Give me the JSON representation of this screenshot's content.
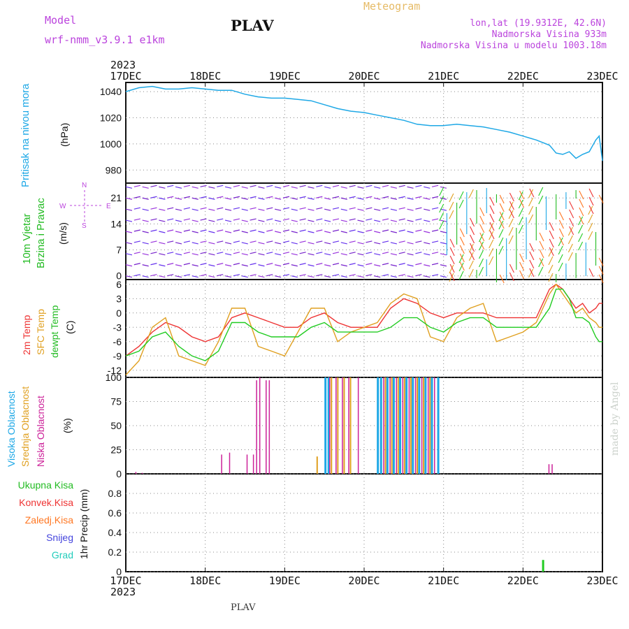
{
  "header": {
    "model_label": "Model",
    "model_name": "wrf-nmm_v3.9.1 e1km",
    "title": "PLAV",
    "meteogram_label": "Meteogram",
    "lonlat": "lon,lat (19.9312E, 42.6N)",
    "elevation": "Nadmorska Visina 933m",
    "model_elevation": "Nadmorska Visina u modelu 1003.18m",
    "year_top": "2023",
    "year_bottom": "2023",
    "footer_title": "PLAV",
    "watermark": "made by Angel"
  },
  "colors": {
    "pressure": "#1ea8e6",
    "wind_label": "#22bb22",
    "temp": "#ee3333",
    "sfc_temp": "#e0a020",
    "dewpt": "#22cc22",
    "cloud_high": "#1ea8e6",
    "cloud_mid": "#e0a020",
    "cloud_low": "#cc2299",
    "purple": "#bb44dd",
    "meteogram": "#e6bb66"
  },
  "chart_data": [
    {
      "type": "line",
      "name": "pressure",
      "ylabel_colored": "Pritisak na nivou mora",
      "unit": "(hPa)",
      "x": [
        0,
        4,
        8,
        12,
        16,
        20,
        24,
        28,
        32,
        36,
        40,
        44,
        48,
        52,
        56,
        60,
        64,
        68,
        72,
        76,
        80,
        84,
        88,
        92,
        96,
        100,
        104,
        108,
        112,
        116,
        120,
        124,
        128,
        130,
        132,
        134,
        136,
        138,
        140,
        142,
        143,
        144
      ],
      "values": [
        1040,
        1043,
        1044,
        1042,
        1042,
        1043,
        1042,
        1041,
        1041,
        1038,
        1036,
        1035,
        1035,
        1034,
        1033,
        1030,
        1027,
        1025,
        1024,
        1022,
        1020,
        1018,
        1015,
        1014,
        1014,
        1015,
        1014,
        1013,
        1011,
        1009,
        1006,
        1003,
        999,
        993,
        992,
        994,
        989,
        992,
        994,
        1003,
        1006,
        987
      ],
      "ylim": [
        970,
        1047
      ],
      "yticks": [
        "1040",
        "1020",
        "1000",
        "980"
      ]
    },
    {
      "type": "barbs",
      "name": "wind",
      "ylabel_colored": [
        "10m Vjetar",
        "Brzina i Pravac"
      ],
      "unit": "(m/s)",
      "compass": [
        "N",
        "W",
        "E",
        "S"
      ],
      "ylim": [
        -1,
        25
      ],
      "yticks": [
        "21",
        "14",
        "7",
        "0"
      ]
    },
    {
      "type": "line",
      "name": "temperature",
      "ylabel_colored": [
        "2m Temp",
        "SFC Temp",
        "dewpt Temp"
      ],
      "unit": "(C)",
      "x": [
        0,
        4,
        8,
        12,
        16,
        20,
        24,
        28,
        32,
        36,
        40,
        44,
        48,
        52,
        56,
        60,
        64,
        68,
        72,
        76,
        80,
        84,
        88,
        92,
        96,
        100,
        104,
        108,
        112,
        116,
        120,
        124,
        128,
        130,
        132,
        134,
        136,
        138,
        140,
        142,
        143,
        144
      ],
      "series": [
        {
          "name": "2m Temp",
          "values": [
            -9,
            -7,
            -4,
            -2,
            -3,
            -5,
            -6,
            -5,
            -1,
            0,
            -1,
            -2,
            -3,
            -3,
            -1,
            0,
            -2,
            -3,
            -3,
            -3,
            1,
            3,
            2,
            0,
            -1,
            0,
            0,
            0,
            -1,
            -1,
            -1,
            -1,
            5,
            6,
            5,
            3,
            1,
            2,
            0,
            1,
            2,
            2
          ]
        },
        {
          "name": "SFC Temp",
          "values": [
            -13,
            -10,
            -3,
            -1,
            -9,
            -10,
            -11,
            -6,
            1,
            1,
            -7,
            -8,
            -9,
            -4,
            1,
            1,
            -6,
            -4,
            -3,
            -2,
            2,
            4,
            3,
            -5,
            -6,
            -1,
            1,
            2,
            -6,
            -5,
            -4,
            -2,
            4,
            6,
            4,
            2,
            0,
            1,
            -1,
            -2,
            -3,
            -3
          ]
        },
        {
          "name": "dewpt Temp",
          "values": [
            -9,
            -8,
            -5,
            -4,
            -7,
            -9,
            -10,
            -8,
            -2,
            -2,
            -4,
            -5,
            -5,
            -5,
            -3,
            -2,
            -4,
            -4,
            -4,
            -4,
            -3,
            -1,
            -1,
            -3,
            -4,
            -2,
            -1,
            -1,
            -3,
            -3,
            -3,
            -3,
            1,
            5,
            5,
            3,
            -1,
            -1,
            -2,
            -5,
            -6,
            -6
          ]
        }
      ],
      "ylim": [
        -13.5,
        7
      ],
      "yticks": [
        "6",
        "3",
        "0",
        "-3",
        "-6",
        "-9",
        "-12"
      ]
    },
    {
      "type": "bar",
      "name": "clouds",
      "ylabel_colored": [
        "Visoka Oblacnost",
        "Srednja Oblacnost",
        "Niska Oblacnost"
      ],
      "unit": "(%)",
      "ylim": [
        0,
        100
      ],
      "yticks": [
        "100",
        "75",
        "50",
        "25",
        "0"
      ],
      "low": [
        [
          0.6,
          2
        ],
        [
          1.0,
          1
        ],
        [
          6.0,
          20
        ],
        [
          6.5,
          22
        ],
        [
          7.6,
          20
        ],
        [
          8.0,
          20
        ],
        [
          8.2,
          97
        ],
        [
          8.4,
          100
        ],
        [
          8.8,
          97
        ],
        [
          9.0,
          97
        ],
        [
          12.8,
          100
        ],
        [
          13.2,
          100
        ],
        [
          13.6,
          100
        ],
        [
          14.0,
          100
        ],
        [
          14.6,
          100
        ],
        [
          16.2,
          100
        ],
        [
          16.6,
          100
        ],
        [
          17.0,
          100
        ],
        [
          17.4,
          100
        ],
        [
          17.8,
          100
        ],
        [
          18.2,
          100
        ],
        [
          18.6,
          100
        ],
        [
          19.0,
          100
        ],
        [
          19.4,
          100
        ],
        [
          26.6,
          10
        ],
        [
          26.8,
          10
        ]
      ],
      "mid": [
        [
          12.0,
          18
        ],
        [
          12.9,
          100
        ],
        [
          13.3,
          100
        ],
        [
          13.7,
          100
        ],
        [
          14.1,
          100
        ],
        [
          16.3,
          100
        ],
        [
          16.7,
          100
        ],
        [
          17.1,
          100
        ],
        [
          17.5,
          100
        ],
        [
          17.9,
          100
        ],
        [
          18.3,
          100
        ],
        [
          18.7,
          100
        ],
        [
          19.1,
          100
        ]
      ],
      "high": [
        [
          12.5,
          100
        ],
        [
          12.7,
          100
        ],
        [
          15.8,
          100
        ],
        [
          16.0,
          100
        ],
        [
          16.4,
          100
        ],
        [
          16.8,
          100
        ],
        [
          17.2,
          100
        ],
        [
          17.6,
          100
        ],
        [
          18.0,
          100
        ],
        [
          18.4,
          100
        ],
        [
          18.8,
          100
        ],
        [
          19.2,
          100
        ],
        [
          19.6,
          100
        ]
      ]
    },
    {
      "type": "bar",
      "name": "precip",
      "ylabel_colored": [
        "Ukupna Kisa",
        "Konvek.Kisa",
        "Zaledj.Kisa",
        "Snijeg",
        "Grad"
      ],
      "unit": "1hr Precip (mm)",
      "ylim": [
        0,
        1
      ],
      "yticks": [
        "0.8",
        "0.6",
        "0.4",
        "0.2",
        "0"
      ],
      "bars": [
        [
          26.2,
          0.12
        ]
      ]
    }
  ],
  "xaxis": {
    "labels": [
      "17DEC",
      "18DEC",
      "19DEC",
      "20DEC",
      "21DEC",
      "22DEC",
      "23DEC"
    ]
  }
}
